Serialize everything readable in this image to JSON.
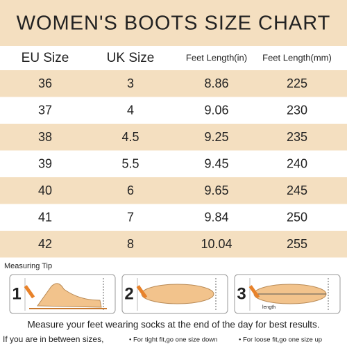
{
  "header": {
    "title": "WOMEN'S BOOTS SIZE CHART"
  },
  "table": {
    "columns": [
      "EU Size",
      "UK Size",
      "Feet Length(in)",
      "Feet Length(mm)"
    ],
    "rows": [
      [
        "36",
        "3",
        "8.86",
        "225"
      ],
      [
        "37",
        "4",
        "9.06",
        "230"
      ],
      [
        "38",
        "4.5",
        "9.25",
        "235"
      ],
      [
        "39",
        "5.5",
        "9.45",
        "240"
      ],
      [
        "40",
        "6",
        "9.65",
        "245"
      ],
      [
        "41",
        "7",
        "9.84",
        "250"
      ],
      [
        "42",
        "8",
        "10.04",
        "255"
      ]
    ]
  },
  "measuring": {
    "title": "Measuring Tip",
    "steps": [
      "1",
      "2",
      "3"
    ],
    "ruler_label": "length"
  },
  "footer": {
    "note": "Measure your feet wearing socks at the end of the day for best results.",
    "between": "If you are in between sizes,",
    "tight": "• For tight fit,go one size down",
    "loose": "• For loose fit,go one size up"
  }
}
